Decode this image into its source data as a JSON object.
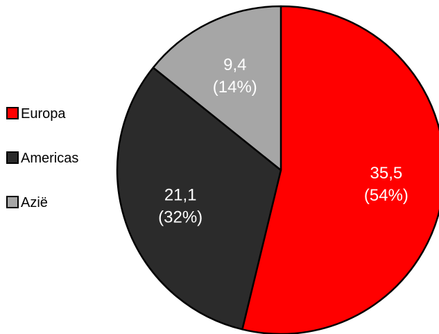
{
  "chart_data": {
    "type": "pie",
    "title": "",
    "categories": [
      "Europa",
      "Americas",
      "Azië"
    ],
    "values": [
      35.5,
      21.1,
      9.4
    ],
    "value_labels": [
      "35,5",
      "21,1",
      "9,4"
    ],
    "percent_labels": [
      "(54%)",
      "(32%)",
      "(14%)"
    ],
    "colors": [
      "#ff0000",
      "#2b2b2b",
      "#a6a6a6"
    ],
    "slice_outline_color": "#000000",
    "start_angle": "12 o'clock",
    "direction": "clockwise",
    "legend": {
      "position": "left",
      "entries": [
        "Europa",
        "Americas",
        "Azië"
      ]
    }
  }
}
